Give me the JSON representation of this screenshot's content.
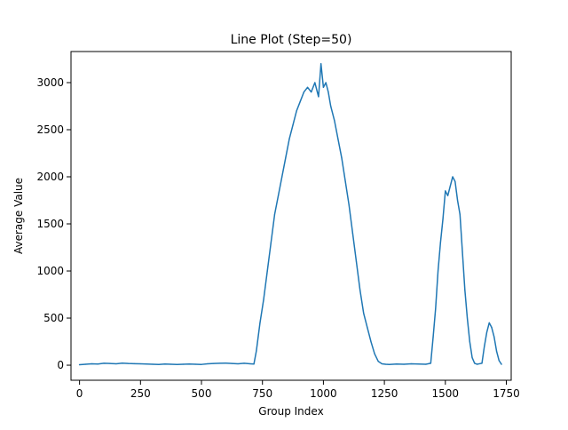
{
  "chart_data": {
    "type": "line",
    "title": "Line Plot (Step=50)",
    "xlabel": "Group Index",
    "ylabel": "Average Value",
    "xlim": [
      -35,
      1770
    ],
    "ylim": [
      -160,
      3330
    ],
    "x_ticks": [
      0,
      250,
      500,
      750,
      1000,
      1250,
      1500,
      1750
    ],
    "y_ticks": [
      0,
      500,
      1000,
      1500,
      2000,
      2500,
      3000
    ],
    "grid": false,
    "legend": "none",
    "series": [
      {
        "color": "#1f77b4",
        "x": [
          0,
          25,
          50,
          75,
          100,
          125,
          150,
          175,
          200,
          225,
          250,
          275,
          300,
          325,
          350,
          375,
          400,
          425,
          450,
          475,
          500,
          525,
          550,
          575,
          600,
          625,
          650,
          675,
          700,
          715,
          725,
          740,
          755,
          770,
          785,
          800,
          815,
          830,
          845,
          860,
          875,
          890,
          905,
          920,
          935,
          950,
          965,
          980,
          990,
          1000,
          1010,
          1020,
          1030,
          1045,
          1060,
          1075,
          1090,
          1105,
          1120,
          1135,
          1150,
          1165,
          1180,
          1195,
          1210,
          1225,
          1240,
          1255,
          1270,
          1300,
          1330,
          1360,
          1390,
          1420,
          1440,
          1450,
          1460,
          1470,
          1480,
          1490,
          1500,
          1510,
          1520,
          1530,
          1540,
          1550,
          1560,
          1570,
          1580,
          1590,
          1600,
          1610,
          1620,
          1630,
          1640,
          1650,
          1660,
          1670,
          1680,
          1690,
          1700,
          1710,
          1720,
          1730
        ],
        "y": [
          5,
          10,
          15,
          12,
          20,
          18,
          15,
          22,
          18,
          16,
          14,
          12,
          10,
          8,
          12,
          10,
          8,
          10,
          12,
          10,
          8,
          15,
          18,
          20,
          22,
          18,
          15,
          20,
          15,
          12,
          150,
          450,
          700,
          1000,
          1300,
          1600,
          1800,
          2000,
          2200,
          2400,
          2550,
          2700,
          2800,
          2900,
          2950,
          2900,
          3000,
          2850,
          3200,
          2950,
          3000,
          2900,
          2750,
          2600,
          2400,
          2200,
          1950,
          1700,
          1400,
          1100,
          800,
          550,
          400,
          250,
          120,
          40,
          15,
          10,
          8,
          12,
          10,
          15,
          12,
          10,
          20,
          300,
          600,
          1000,
          1300,
          1550,
          1850,
          1800,
          1900,
          2000,
          1950,
          1750,
          1600,
          1200,
          800,
          500,
          250,
          80,
          20,
          10,
          15,
          20,
          200,
          350,
          450,
          400,
          300,
          150,
          50,
          10
        ]
      }
    ]
  }
}
